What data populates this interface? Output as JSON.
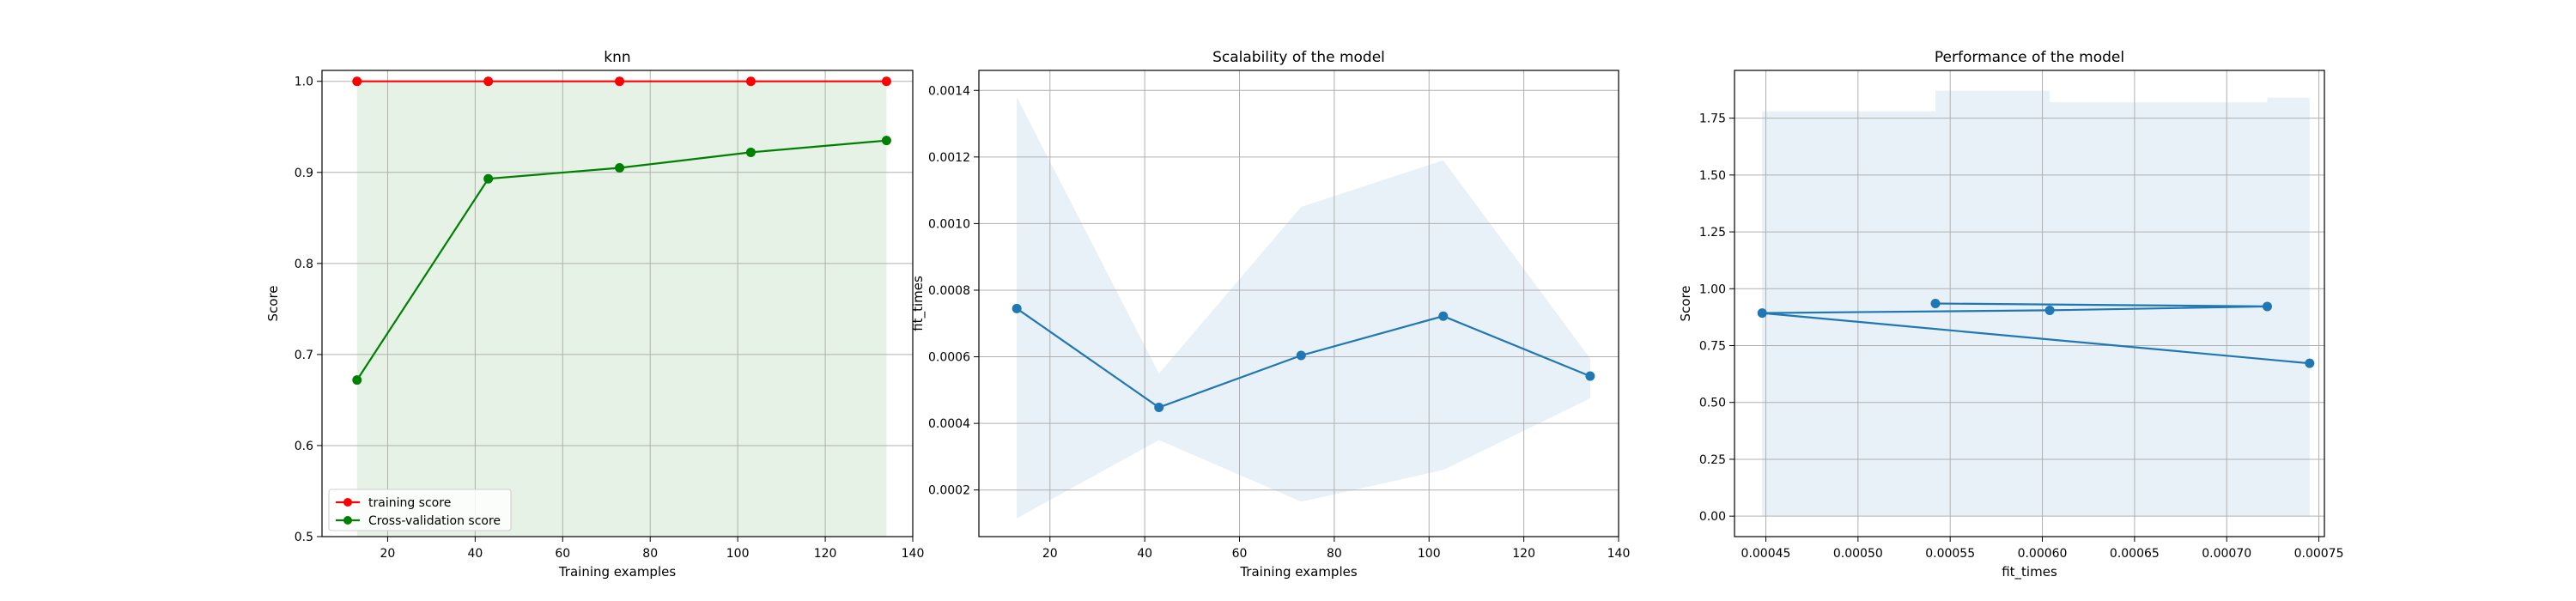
{
  "chart_data": [
    {
      "type": "line",
      "title": "knn",
      "xlabel": "Training examples",
      "ylabel": "Score",
      "xlim": [
        5,
        140
      ],
      "ylim": [
        0.5,
        1.012
      ],
      "xticks": [
        20,
        40,
        60,
        80,
        100,
        120,
        140
      ],
      "yticks": [
        0.5,
        0.6,
        0.7,
        0.8,
        0.9,
        1.0
      ],
      "xtick_labels": [
        "20",
        "40",
        "60",
        "80",
        "100",
        "120",
        "140"
      ],
      "ytick_labels": [
        "0.5",
        "0.6",
        "0.7",
        "0.8",
        "0.9",
        "1.0"
      ],
      "grid": true,
      "legend_position": "lower-left",
      "x": [
        13,
        43,
        73,
        103,
        134
      ],
      "series": [
        {
          "name": "training score",
          "values": [
            1.0,
            1.0,
            1.0,
            1.0,
            1.0
          ],
          "color": "#ff0000",
          "band_lower": [
            1.0,
            1.0,
            1.0,
            1.0,
            1.0
          ],
          "band_upper": [
            1.0,
            1.0,
            1.0,
            1.0,
            1.0
          ],
          "band_color": "#ff0000"
        },
        {
          "name": "Cross-validation score",
          "values": [
            0.672,
            0.893,
            0.905,
            0.922,
            0.935
          ],
          "color": "#008000",
          "band_lower": [
            0.48,
            0.48,
            0.48,
            0.48,
            0.48
          ],
          "band_upper": [
            1.0,
            1.0,
            1.0,
            1.0,
            1.0
          ],
          "band_color": "#008000"
        }
      ]
    },
    {
      "type": "line",
      "title": "Scalability of the model",
      "xlabel": "Training examples",
      "ylabel": "fit_times",
      "xlim": [
        5,
        140
      ],
      "ylim": [
        6e-05,
        0.00146
      ],
      "xticks": [
        20,
        40,
        60,
        80,
        100,
        120,
        140
      ],
      "yticks": [
        0.0002,
        0.0004,
        0.0006,
        0.0008,
        0.001,
        0.0012,
        0.0014
      ],
      "xtick_labels": [
        "20",
        "40",
        "60",
        "80",
        "100",
        "120",
        "140"
      ],
      "ytick_labels": [
        "0.0002",
        "0.0004",
        "0.0006",
        "0.0008",
        "0.0010",
        "0.0012",
        "0.0014"
      ],
      "grid": true,
      "x": [
        13,
        43,
        73,
        103,
        134
      ],
      "series": [
        {
          "values": [
            0.000745,
            0.000448,
            0.000604,
            0.000722,
            0.000542
          ],
          "color": "#1f77b4",
          "band_lower": [
            0.000115,
            0.00035,
            0.000165,
            0.00026,
            0.000475
          ],
          "band_upper": [
            0.00138,
            0.00055,
            0.00105,
            0.00119,
            0.000595
          ],
          "band_color": "#1f77b4"
        }
      ]
    },
    {
      "type": "line",
      "title": "Performance of the model",
      "xlabel": "fit_times",
      "ylabel": "Score",
      "xlim": [
        0.000433,
        0.000753
      ],
      "ylim": [
        -0.09,
        1.96
      ],
      "xticks": [
        0.00045,
        0.0005,
        0.00055,
        0.0006,
        0.00065,
        0.0007,
        0.00075
      ],
      "yticks": [
        0.0,
        0.25,
        0.5,
        0.75,
        1.0,
        1.25,
        1.5,
        1.75
      ],
      "xtick_labels": [
        "0.00045",
        "0.00050",
        "0.00055",
        "0.00060",
        "0.00065",
        "0.00070",
        "0.00075"
      ],
      "ytick_labels": [
        "0.00",
        "0.25",
        "0.50",
        "0.75",
        "1.00",
        "1.25",
        "1.50",
        "1.75"
      ],
      "grid": true,
      "x": [
        0.000745,
        0.000448,
        0.000604,
        0.000722,
        0.000542
      ],
      "series": [
        {
          "values": [
            0.672,
            0.893,
            0.905,
            0.922,
            0.935
          ],
          "color": "#1f77b4",
          "band_lower": [
            0.0,
            0.0,
            0.0,
            0.0,
            0.0
          ],
          "band_upper": [
            1.33,
            1.78,
            1.82,
            1.84,
            1.87
          ],
          "band_color": "#1f77b4"
        }
      ]
    }
  ]
}
